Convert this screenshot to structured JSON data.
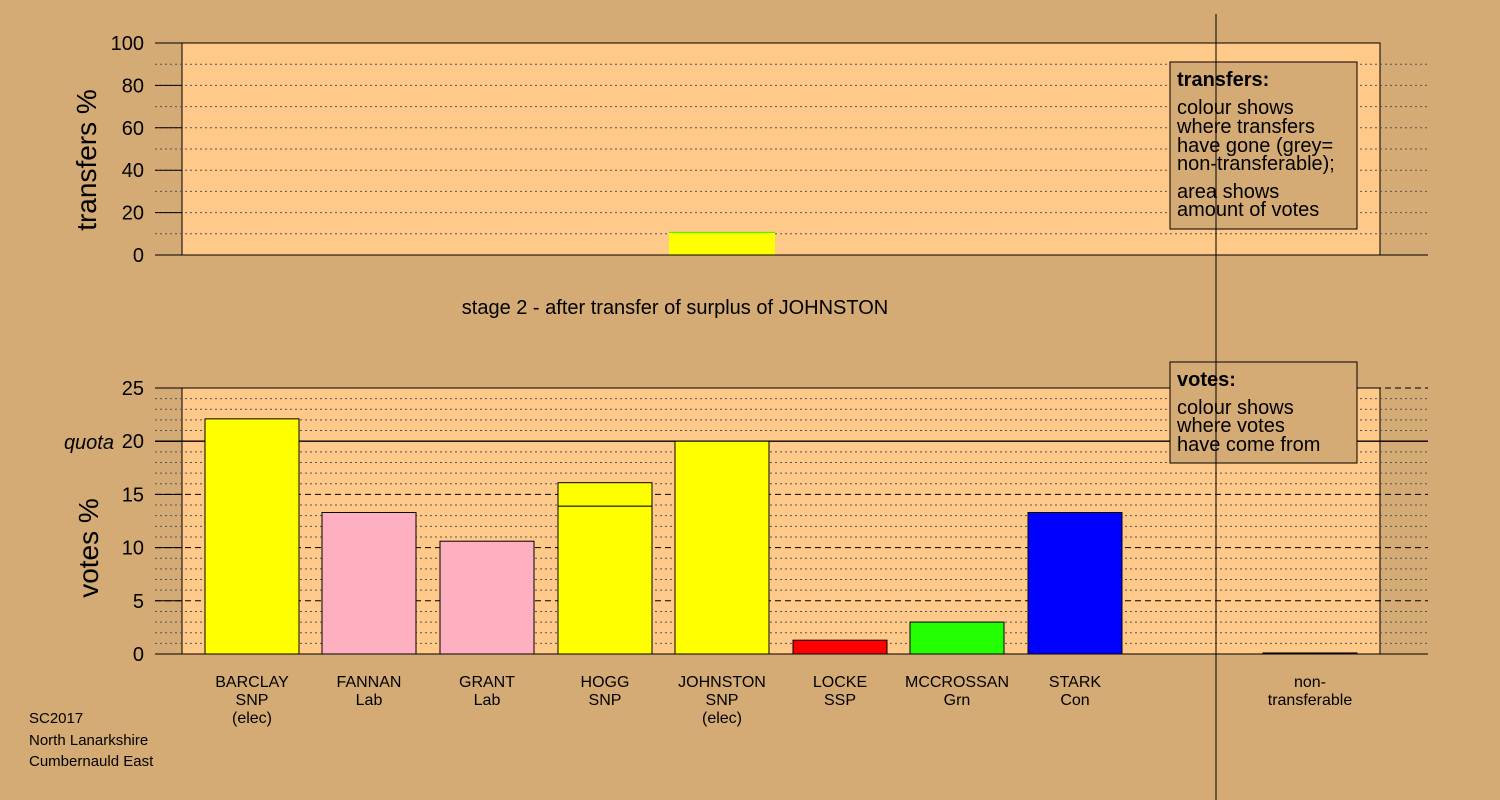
{
  "stage_text": "stage 2 - after transfer of surplus of JOHNSTON",
  "footer": [
    "SC2017",
    "North Lanarkshire",
    "Cumbernauld East"
  ],
  "legend_transfers": {
    "title": "transfers:",
    "lines1": [
      "colour shows",
      "where transfers",
      "have gone (grey=",
      "non-transferable);"
    ],
    "lines2": [
      "area shows",
      "amount of votes"
    ]
  },
  "legend_votes": {
    "title": "votes:",
    "lines": [
      "colour shows",
      "where votes",
      "have come from"
    ]
  },
  "colors": {
    "background": "#d4aa75",
    "plot_area": "#ffc98a",
    "SNP": "#ffff00",
    "Lab": "#ffb0c0",
    "SSP": "#ff0000",
    "Grn": "#22ff00",
    "Con": "#0000ff",
    "non-transferable": "#808080"
  },
  "chart_data": [
    {
      "type": "bar",
      "ylabel": "transfers %",
      "ylim": [
        0,
        100
      ],
      "yticks": [
        0,
        20,
        40,
        60,
        80,
        100
      ],
      "grid": true,
      "bars": [
        {
          "position": "JOHNSTON",
          "segments": [
            {
              "to": "SNP",
              "value": 10.5,
              "color": "#ffff00"
            },
            {
              "to": "Grn",
              "value": 0.4,
              "color": "#22ff00"
            }
          ]
        }
      ]
    },
    {
      "type": "bar",
      "ylabel": "votes %",
      "ylim": [
        0,
        25
      ],
      "yticks": [
        0,
        5,
        10,
        15,
        20,
        25
      ],
      "quota": 20,
      "quota_label": "quota",
      "grid": true,
      "candidates": [
        {
          "name": "BARCLAY",
          "party": "SNP",
          "note": "(elec)",
          "color": "#ffff00",
          "segments": [
            22.1
          ]
        },
        {
          "name": "FANNAN",
          "party": "Lab",
          "note": "",
          "color": "#ffb0c0",
          "segments": [
            13.3
          ]
        },
        {
          "name": "GRANT",
          "party": "Lab",
          "note": "",
          "color": "#ffb0c0",
          "segments": [
            10.6
          ]
        },
        {
          "name": "HOGG",
          "party": "SNP",
          "note": "",
          "color": "#ffff00",
          "segments": [
            13.9,
            2.2
          ]
        },
        {
          "name": "JOHNSTON",
          "party": "SNP",
          "note": "(elec)",
          "color": "#ffff00",
          "segments": [
            20.0
          ]
        },
        {
          "name": "LOCKE",
          "party": "SSP",
          "note": "",
          "color": "#ff0000",
          "segments": [
            1.3
          ]
        },
        {
          "name": "MCCROSSAN",
          "party": "Grn",
          "note": "",
          "color": "#22ff00",
          "segments": [
            3.0
          ]
        },
        {
          "name": "STARK",
          "party": "Con",
          "note": "",
          "color": "#0000ff",
          "segments": [
            13.3
          ]
        }
      ],
      "nontransferable": {
        "line1": "non-",
        "line2": "transferable",
        "value": 0.1,
        "color": "#808080"
      }
    }
  ]
}
